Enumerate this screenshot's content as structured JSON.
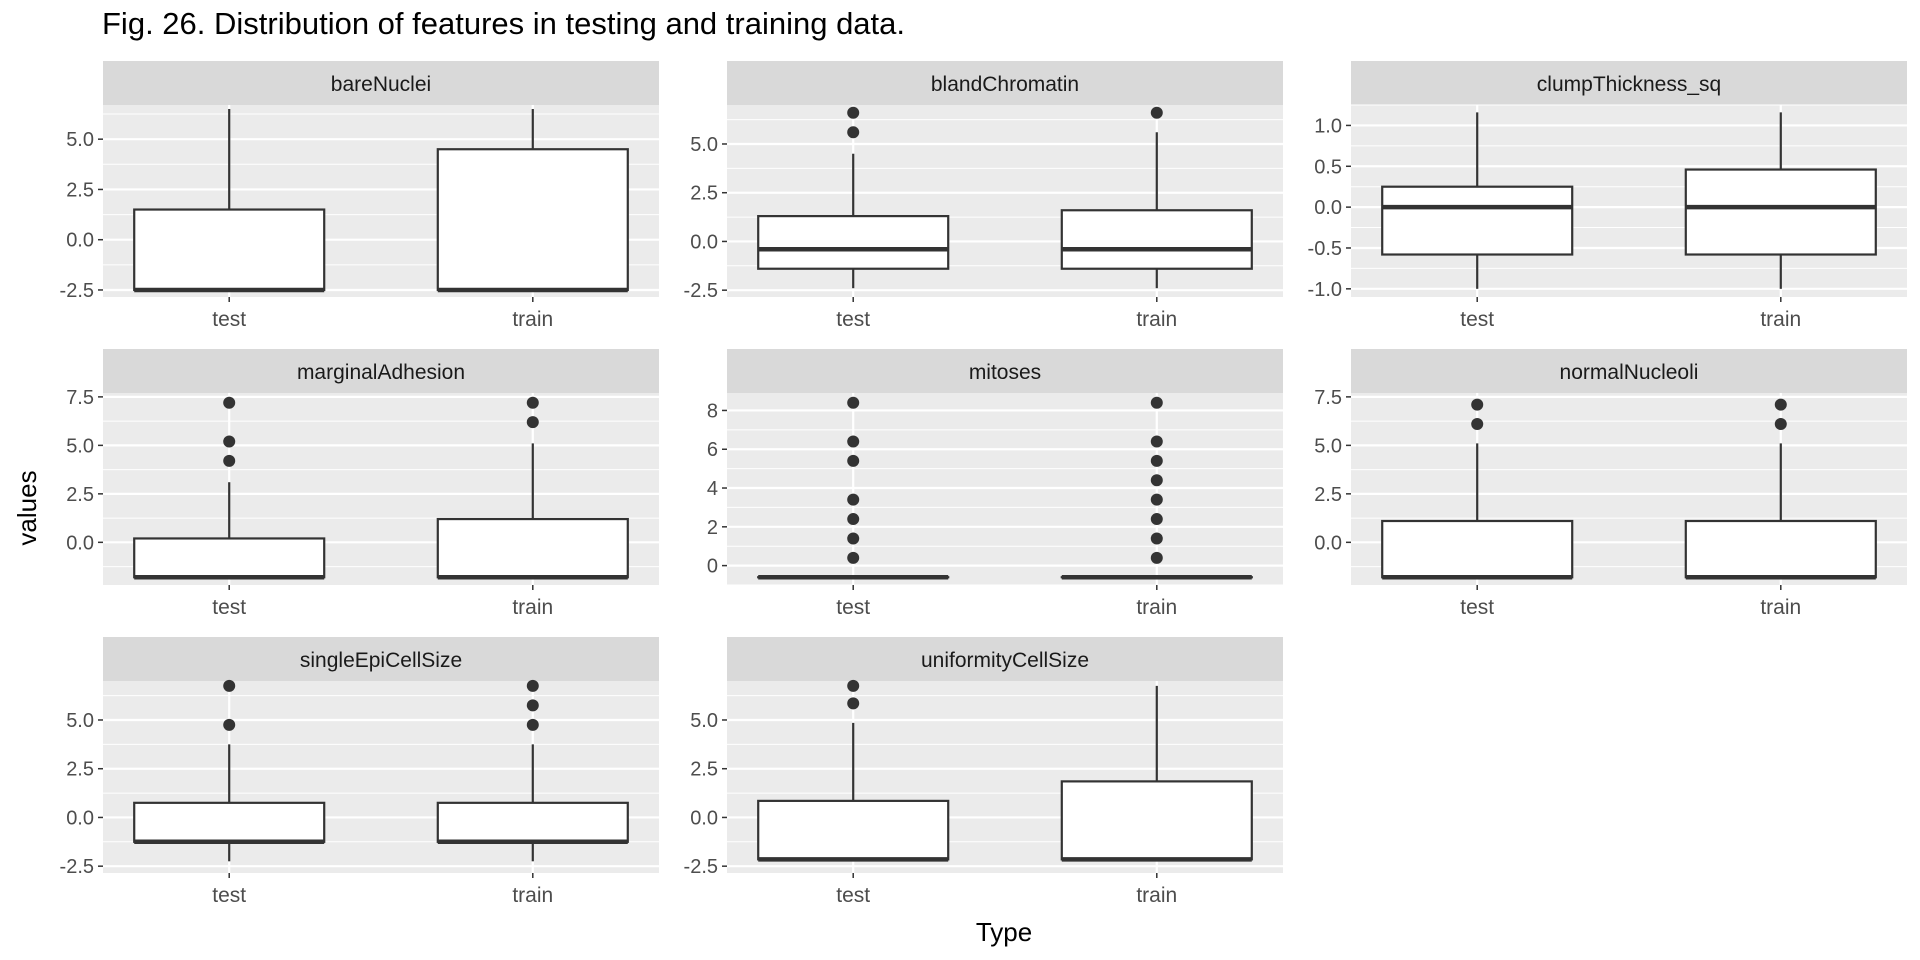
{
  "title": "Fig. 26. Distribution of features in testing and training data.",
  "chart_data": {
    "type": "boxplot",
    "xlabel": "Type",
    "ylabel": "values",
    "categories": [
      "test",
      "train"
    ],
    "colors": {
      "panel_bg": "#EBEBEB",
      "strip_bg": "#D9D9D9",
      "grid": "#FFFFFF",
      "box_fill": "#FFFFFF",
      "stroke": "#333333"
    },
    "grid": true,
    "facets": [
      {
        "name": "bareNuclei",
        "ylim": [
          -2.85,
          6.7
        ],
        "yticks": [
          -2.5,
          0.0,
          2.5,
          5.0
        ],
        "ytick_labels": [
          "-2.5",
          "0.0",
          "2.5",
          "5.0"
        ],
        "boxes": [
          {
            "category": "test",
            "q1": -2.5,
            "median": -2.5,
            "q3": 1.5,
            "whisker_low": -2.5,
            "whisker_high": 6.5,
            "outliers": []
          },
          {
            "category": "train",
            "q1": -2.5,
            "median": -2.5,
            "q3": 4.5,
            "whisker_low": -2.5,
            "whisker_high": 6.5,
            "outliers": []
          }
        ]
      },
      {
        "name": "blandChromatin",
        "ylim": [
          -2.85,
          7.0
        ],
        "yticks": [
          -2.5,
          0.0,
          2.5,
          5.0
        ],
        "ytick_labels": [
          "-2.5",
          "0.0",
          "2.5",
          "5.0"
        ],
        "boxes": [
          {
            "category": "test",
            "q1": -1.4,
            "median": -0.4,
            "q3": 1.3,
            "whisker_low": -2.4,
            "whisker_high": 4.5,
            "outliers": [
              5.6,
              6.6
            ]
          },
          {
            "category": "train",
            "q1": -1.4,
            "median": -0.4,
            "q3": 1.6,
            "whisker_low": -2.4,
            "whisker_high": 5.6,
            "outliers": [
              6.6
            ]
          }
        ]
      },
      {
        "name": "clumpThickness_sq",
        "ylim": [
          -1.1,
          1.25
        ],
        "yticks": [
          -1.0,
          -0.5,
          0.0,
          0.5,
          1.0
        ],
        "ytick_labels": [
          "-1.0",
          "-0.5",
          "0.0",
          "0.5",
          "1.0"
        ],
        "boxes": [
          {
            "category": "test",
            "q1": -0.58,
            "median": 0.0,
            "q3": 0.25,
            "whisker_low": -1.0,
            "whisker_high": 1.16,
            "outliers": []
          },
          {
            "category": "train",
            "q1": -0.58,
            "median": 0.0,
            "q3": 0.46,
            "whisker_low": -1.0,
            "whisker_high": 1.16,
            "outliers": []
          }
        ]
      },
      {
        "name": "marginalAdhesion",
        "ylim": [
          -2.2,
          7.7
        ],
        "yticks": [
          0.0,
          2.5,
          5.0,
          7.5
        ],
        "ytick_labels": [
          "0.0",
          "2.5",
          "5.0",
          "7.5"
        ],
        "boxes": [
          {
            "category": "test",
            "q1": -1.8,
            "median": -1.8,
            "q3": 0.2,
            "whisker_low": -1.8,
            "whisker_high": 3.1,
            "outliers": [
              4.2,
              5.2,
              7.2
            ]
          },
          {
            "category": "train",
            "q1": -1.8,
            "median": -1.8,
            "q3": 1.2,
            "whisker_low": -1.8,
            "whisker_high": 5.1,
            "outliers": [
              6.2,
              7.2
            ]
          }
        ]
      },
      {
        "name": "mitoses",
        "ylim": [
          -1.0,
          8.9
        ],
        "yticks": [
          0,
          2,
          4,
          6,
          8
        ],
        "ytick_labels": [
          "0",
          "2",
          "4",
          "6",
          "8"
        ],
        "boxes": [
          {
            "category": "test",
            "q1": -0.6,
            "median": -0.6,
            "q3": -0.6,
            "whisker_low": -0.6,
            "whisker_high": -0.6,
            "outliers": [
              0.4,
              1.4,
              2.4,
              3.4,
              5.4,
              6.4,
              8.4
            ]
          },
          {
            "category": "train",
            "q1": -0.6,
            "median": -0.6,
            "q3": -0.6,
            "whisker_low": -0.6,
            "whisker_high": -0.6,
            "outliers": [
              0.4,
              1.4,
              2.4,
              3.4,
              4.4,
              5.4,
              6.4,
              8.4
            ]
          }
        ]
      },
      {
        "name": "normalNucleoli",
        "ylim": [
          -2.2,
          7.7
        ],
        "yticks": [
          0.0,
          2.5,
          5.0,
          7.5
        ],
        "ytick_labels": [
          "0.0",
          "2.5",
          "5.0",
          "7.5"
        ],
        "boxes": [
          {
            "category": "test",
            "q1": -1.8,
            "median": -1.8,
            "q3": 1.1,
            "whisker_low": -1.8,
            "whisker_high": 5.1,
            "outliers": [
              6.1,
              7.1
            ]
          },
          {
            "category": "train",
            "q1": -1.8,
            "median": -1.8,
            "q3": 1.1,
            "whisker_low": -1.8,
            "whisker_high": 5.1,
            "outliers": [
              6.1,
              7.1
            ]
          }
        ]
      },
      {
        "name": "singleEpiCellSize",
        "ylim": [
          -2.85,
          7.0
        ],
        "yticks": [
          -2.5,
          0.0,
          2.5,
          5.0
        ],
        "ytick_labels": [
          "-2.5",
          "0.0",
          "2.5",
          "5.0"
        ],
        "boxes": [
          {
            "category": "test",
            "q1": -1.25,
            "median": -1.25,
            "q3": 0.75,
            "whisker_low": -2.25,
            "whisker_high": 3.75,
            "outliers": [
              4.75,
              6.75
            ]
          },
          {
            "category": "train",
            "q1": -1.25,
            "median": -1.25,
            "q3": 0.75,
            "whisker_low": -2.25,
            "whisker_high": 3.75,
            "outliers": [
              4.75,
              5.75,
              6.75
            ]
          }
        ]
      },
      {
        "name": "uniformityCellSize",
        "ylim": [
          -2.85,
          7.0
        ],
        "yticks": [
          -2.5,
          0.0,
          2.5,
          5.0
        ],
        "ytick_labels": [
          "-2.5",
          "0.0",
          "2.5",
          "5.0"
        ],
        "boxes": [
          {
            "category": "test",
            "q1": -2.15,
            "median": -2.15,
            "q3": 0.85,
            "whisker_low": -2.15,
            "whisker_high": 4.85,
            "outliers": [
              5.85,
              6.75
            ]
          },
          {
            "category": "train",
            "q1": -2.15,
            "median": -2.15,
            "q3": 1.85,
            "whisker_low": -2.15,
            "whisker_high": 6.75,
            "outliers": []
          }
        ]
      }
    ]
  }
}
